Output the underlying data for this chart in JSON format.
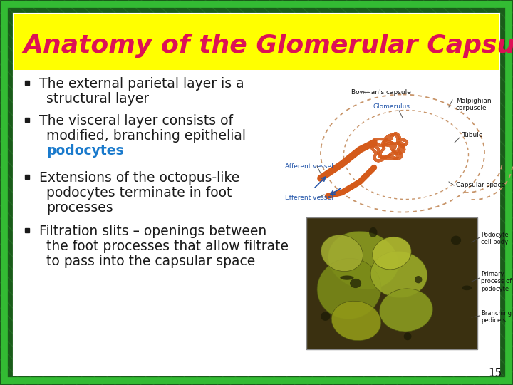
{
  "title": "Anatomy of the Glomerular Capsule",
  "title_color": "#dd1155",
  "title_bg_color": "#ffff00",
  "slide_bg_color": "#ffffff",
  "outer_bg_color": "#1a5c1a",
  "outer_border_color": "#33aa33",
  "inner_border_color": "#ffffff",
  "bullet_text_color": "#1a1a1a",
  "podocytes_color": "#1a7acc",
  "page_number": "15",
  "bullet1_line1": "The external parietal layer is a",
  "bullet1_line2": "structural layer",
  "bullet2_line1": "The visceral layer consists of",
  "bullet2_line2": "modified, branching epithelial",
  "bullet2_line3": "podocytes",
  "bullet3_line1": "Extensions of the octopus-like",
  "bullet3_line2": "podocytes terminate in foot",
  "bullet3_line3": "processes",
  "bullet4_line1": "Filtration slits – openings between",
  "bullet4_line2": "the foot processes that allow filtrate",
  "bullet4_line3": "to pass into the capsular space",
  "font_size_title": 26,
  "font_size_bullet": 13.5
}
